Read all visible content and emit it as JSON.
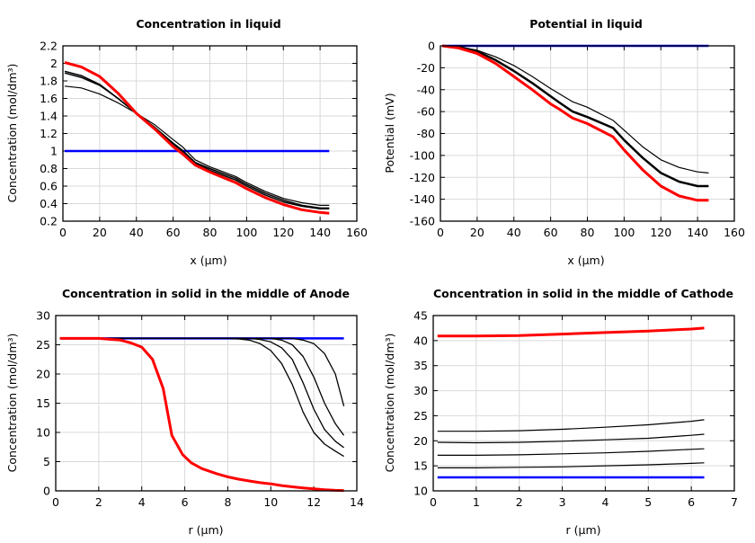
{
  "chart_data": [
    {
      "type": "line",
      "title": "Concentration in liquid",
      "xlabel": "x (µm)",
      "ylabel": "Concentration (mol/dm³)",
      "xlim": [
        0,
        160
      ],
      "ylim": [
        0.2,
        2.2
      ],
      "xticks": [
        "0",
        "20",
        "40",
        "60",
        "80",
        "100",
        "120",
        "140",
        "160"
      ],
      "yticks": [
        "0.2",
        "0.4",
        "0.6",
        "0.8",
        "1",
        "1.2",
        "1.4",
        "1.6",
        "1.8",
        "2",
        "2.2"
      ],
      "grid": true,
      "x": [
        1,
        10,
        20,
        30,
        40,
        50,
        60,
        65,
        72,
        80,
        94,
        100,
        110,
        120,
        130,
        140,
        145
      ],
      "series": [
        {
          "color": "#0000ff",
          "width": 2.5,
          "values": [
            1,
            1,
            1,
            1,
            1,
            1,
            1,
            1,
            1,
            1,
            1,
            1,
            1,
            1,
            1,
            1,
            1
          ]
        },
        {
          "color": "#000000",
          "width": 1.2,
          "values": [
            1.74,
            1.72,
            1.65,
            1.55,
            1.43,
            1.3,
            1.13,
            1.05,
            0.9,
            0.82,
            0.71,
            0.64,
            0.54,
            0.46,
            0.41,
            0.38,
            0.38
          ]
        },
        {
          "color": "#000000",
          "width": 1.5,
          "values": [
            1.89,
            1.84,
            1.75,
            1.6,
            1.43,
            1.27,
            1.09,
            1.01,
            0.87,
            0.8,
            0.69,
            0.62,
            0.52,
            0.44,
            0.38,
            0.35,
            0.35
          ]
        },
        {
          "color": "#000000",
          "width": 1.5,
          "values": [
            1.91,
            1.86,
            1.76,
            1.6,
            1.43,
            1.27,
            1.08,
            1.0,
            0.86,
            0.78,
            0.67,
            0.6,
            0.5,
            0.42,
            0.37,
            0.34,
            0.34
          ]
        },
        {
          "color": "#ff0000",
          "width": 3,
          "values": [
            2.01,
            1.96,
            1.85,
            1.66,
            1.43,
            1.25,
            1.05,
            0.97,
            0.84,
            0.76,
            0.64,
            0.57,
            0.47,
            0.39,
            0.33,
            0.3,
            0.29
          ]
        }
      ]
    },
    {
      "type": "line",
      "title": "Potential in liquid",
      "xlabel": "x (µm)",
      "ylabel": "Potential (mV)",
      "xlim": [
        0,
        160
      ],
      "ylim": [
        -160,
        0
      ],
      "xticks": [
        "0",
        "20",
        "40",
        "60",
        "80",
        "100",
        "120",
        "140",
        "160"
      ],
      "yticks": [
        "-160",
        "-140",
        "-120",
        "-100",
        "-80",
        "-60",
        "-40",
        "-20",
        "0"
      ],
      "grid": true,
      "x": [
        1,
        10,
        20,
        30,
        40,
        50,
        60,
        65,
        72,
        80,
        94,
        100,
        110,
        120,
        130,
        140,
        146
      ],
      "series": [
        {
          "color": "#0000ff",
          "width": 2.5,
          "values": [
            0,
            0,
            0,
            0,
            0,
            0,
            0,
            0,
            0,
            0,
            0,
            0,
            0,
            0,
            0,
            0,
            0
          ]
        },
        {
          "color": "#000000",
          "width": 1.2,
          "values": [
            0,
            -1,
            -4,
            -10,
            -18,
            -28,
            -39,
            -44,
            -51,
            -56,
            -68,
            -77,
            -92,
            -104,
            -111,
            -115,
            -116
          ]
        },
        {
          "color": "#000000",
          "width": 2.5,
          "values": [
            0,
            -1,
            -5,
            -13,
            -23,
            -34,
            -46,
            -52,
            -60,
            -65,
            -75,
            -86,
            -102,
            -116,
            -124,
            -128,
            -128
          ]
        },
        {
          "color": "#ff0000",
          "width": 3,
          "values": [
            0,
            -2,
            -7,
            -16,
            -28,
            -40,
            -53,
            -58,
            -66,
            -71,
            -83,
            -95,
            -113,
            -128,
            -137,
            -141,
            -141
          ]
        }
      ]
    },
    {
      "type": "line",
      "title": "Concentration in solid in the middle of Anode",
      "xlabel": "r (µm)",
      "ylabel": "Concentration (mol/dm³)",
      "xlim": [
        0,
        14
      ],
      "ylim": [
        0,
        30
      ],
      "xticks": [
        "0",
        "2",
        "4",
        "6",
        "8",
        "10",
        "12",
        "14"
      ],
      "yticks": [
        "0",
        "5",
        "10",
        "15",
        "20",
        "25",
        "30"
      ],
      "grid": true,
      "x": [
        0.2,
        2,
        3,
        3.5,
        4,
        4.5,
        5,
        5.4,
        5.9,
        6.3,
        6.8,
        7.5,
        8,
        8.5,
        9,
        9.5,
        10,
        10.5,
        11,
        11.5,
        12,
        12.5,
        13,
        13.4
      ],
      "series": [
        {
          "color": "#0000ff",
          "width": 2.5,
          "values": [
            26.1,
            26.1,
            26.1,
            26.1,
            26.1,
            26.1,
            26.1,
            26.1,
            26.1,
            26.1,
            26.1,
            26.1,
            26.1,
            26.1,
            26.1,
            26.1,
            26.1,
            26.1,
            26.1,
            26.1,
            26.1,
            26.1,
            26.1,
            26.1
          ]
        },
        {
          "color": "#000000",
          "width": 1.3,
          "values": [
            26.1,
            26.1,
            26.1,
            26.1,
            26.1,
            26.1,
            26.1,
            26.1,
            26.1,
            26.1,
            26.1,
            26.1,
            26.1,
            26.0,
            25.8,
            25.2,
            24.0,
            21.8,
            18.2,
            13.5,
            10.0,
            8.0,
            6.8,
            5.9
          ]
        },
        {
          "color": "#000000",
          "width": 1.3,
          "values": [
            26.1,
            26.1,
            26.1,
            26.1,
            26.1,
            26.1,
            26.1,
            26.1,
            26.1,
            26.1,
            26.1,
            26.1,
            26.1,
            26.1,
            26.1,
            25.9,
            25.5,
            24.5,
            22.5,
            18.5,
            14.0,
            10.5,
            8.5,
            7.4
          ]
        },
        {
          "color": "#000000",
          "width": 1.3,
          "values": [
            26.1,
            26.1,
            26.1,
            26.1,
            26.1,
            26.1,
            26.1,
            26.1,
            26.1,
            26.1,
            26.1,
            26.1,
            26.1,
            26.1,
            26.1,
            26.1,
            26.1,
            25.8,
            25.0,
            23.0,
            19.5,
            15.0,
            11.5,
            9.5
          ]
        },
        {
          "color": "#000000",
          "width": 1.3,
          "values": [
            26.1,
            26.1,
            26.1,
            26.1,
            26.1,
            26.1,
            26.1,
            26.1,
            26.1,
            26.1,
            26.1,
            26.1,
            26.1,
            26.1,
            26.1,
            26.1,
            26.1,
            26.1,
            26.1,
            25.8,
            25.2,
            23.5,
            20.0,
            14.5
          ]
        },
        {
          "color": "#ff0000",
          "width": 3,
          "values": [
            26.1,
            26.1,
            25.8,
            25.3,
            24.6,
            22.5,
            17.5,
            9.5,
            6.2,
            4.8,
            3.8,
            2.9,
            2.4,
            2.0,
            1.7,
            1.4,
            1.2,
            0.9,
            0.7,
            0.5,
            0.35,
            0.2,
            0.1,
            0.05
          ]
        }
      ]
    },
    {
      "type": "line",
      "title": "Concentration in solid in the middle of Cathode",
      "xlabel": "r (µm)",
      "ylabel": "Concentration (mol/dm³)",
      "xlim": [
        0,
        7
      ],
      "ylim": [
        10,
        45
      ],
      "xticks": [
        "0",
        "1",
        "2",
        "3",
        "4",
        "5",
        "6",
        "7"
      ],
      "yticks": [
        "10",
        "15",
        "20",
        "25",
        "30",
        "35",
        "40",
        "45"
      ],
      "grid": true,
      "x": [
        0.1,
        1,
        2,
        3,
        4,
        5,
        6,
        6.3
      ],
      "series": [
        {
          "color": "#0000ff",
          "width": 2.5,
          "values": [
            12.7,
            12.7,
            12.7,
            12.7,
            12.7,
            12.7,
            12.7,
            12.7
          ]
        },
        {
          "color": "#000000",
          "width": 1.2,
          "values": [
            14.6,
            14.6,
            14.7,
            14.8,
            15.0,
            15.2,
            15.5,
            15.6
          ]
        },
        {
          "color": "#000000",
          "width": 1.2,
          "values": [
            17.1,
            17.1,
            17.2,
            17.4,
            17.6,
            17.9,
            18.3,
            18.4
          ]
        },
        {
          "color": "#000000",
          "width": 1.2,
          "values": [
            19.7,
            19.6,
            19.7,
            19.9,
            20.2,
            20.5,
            21.1,
            21.3
          ]
        },
        {
          "color": "#000000",
          "width": 1.2,
          "values": [
            21.9,
            21.9,
            22.0,
            22.3,
            22.7,
            23.2,
            23.9,
            24.2
          ]
        },
        {
          "color": "#ff0000",
          "width": 3,
          "values": [
            40.9,
            40.9,
            41.0,
            41.3,
            41.6,
            41.9,
            42.3,
            42.5
          ]
        }
      ]
    }
  ]
}
